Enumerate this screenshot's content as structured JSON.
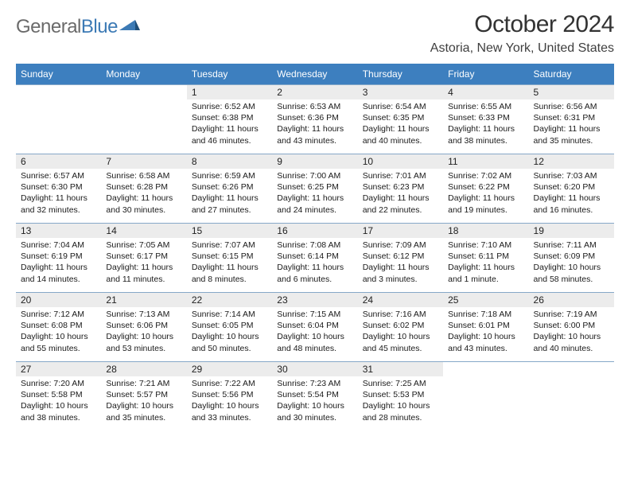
{
  "logo": {
    "word1": "General",
    "word2": "Blue"
  },
  "title": "October 2024",
  "location": "Astoria, New York, United States",
  "colors": {
    "headerBar": "#3d7fbf",
    "weekDivider": "#86a8c8",
    "dayNumBg": "#ececec",
    "logoGray": "#6a6a6a",
    "logoBlue": "#3c7ab5"
  },
  "typography": {
    "titleSize": 30,
    "locationSize": 16,
    "dowSize": 12,
    "bodySize": 10.5
  },
  "daysOfWeek": [
    "Sunday",
    "Monday",
    "Tuesday",
    "Wednesday",
    "Thursday",
    "Friday",
    "Saturday"
  ],
  "weeks": [
    [
      {
        "n": "",
        "lines": []
      },
      {
        "n": "",
        "lines": []
      },
      {
        "n": "1",
        "lines": [
          "Sunrise: 6:52 AM",
          "Sunset: 6:38 PM",
          "Daylight: 11 hours and 46 minutes."
        ]
      },
      {
        "n": "2",
        "lines": [
          "Sunrise: 6:53 AM",
          "Sunset: 6:36 PM",
          "Daylight: 11 hours and 43 minutes."
        ]
      },
      {
        "n": "3",
        "lines": [
          "Sunrise: 6:54 AM",
          "Sunset: 6:35 PM",
          "Daylight: 11 hours and 40 minutes."
        ]
      },
      {
        "n": "4",
        "lines": [
          "Sunrise: 6:55 AM",
          "Sunset: 6:33 PM",
          "Daylight: 11 hours and 38 minutes."
        ]
      },
      {
        "n": "5",
        "lines": [
          "Sunrise: 6:56 AM",
          "Sunset: 6:31 PM",
          "Daylight: 11 hours and 35 minutes."
        ]
      }
    ],
    [
      {
        "n": "6",
        "lines": [
          "Sunrise: 6:57 AM",
          "Sunset: 6:30 PM",
          "Daylight: 11 hours and 32 minutes."
        ]
      },
      {
        "n": "7",
        "lines": [
          "Sunrise: 6:58 AM",
          "Sunset: 6:28 PM",
          "Daylight: 11 hours and 30 minutes."
        ]
      },
      {
        "n": "8",
        "lines": [
          "Sunrise: 6:59 AM",
          "Sunset: 6:26 PM",
          "Daylight: 11 hours and 27 minutes."
        ]
      },
      {
        "n": "9",
        "lines": [
          "Sunrise: 7:00 AM",
          "Sunset: 6:25 PM",
          "Daylight: 11 hours and 24 minutes."
        ]
      },
      {
        "n": "10",
        "lines": [
          "Sunrise: 7:01 AM",
          "Sunset: 6:23 PM",
          "Daylight: 11 hours and 22 minutes."
        ]
      },
      {
        "n": "11",
        "lines": [
          "Sunrise: 7:02 AM",
          "Sunset: 6:22 PM",
          "Daylight: 11 hours and 19 minutes."
        ]
      },
      {
        "n": "12",
        "lines": [
          "Sunrise: 7:03 AM",
          "Sunset: 6:20 PM",
          "Daylight: 11 hours and 16 minutes."
        ]
      }
    ],
    [
      {
        "n": "13",
        "lines": [
          "Sunrise: 7:04 AM",
          "Sunset: 6:19 PM",
          "Daylight: 11 hours and 14 minutes."
        ]
      },
      {
        "n": "14",
        "lines": [
          "Sunrise: 7:05 AM",
          "Sunset: 6:17 PM",
          "Daylight: 11 hours and 11 minutes."
        ]
      },
      {
        "n": "15",
        "lines": [
          "Sunrise: 7:07 AM",
          "Sunset: 6:15 PM",
          "Daylight: 11 hours and 8 minutes."
        ]
      },
      {
        "n": "16",
        "lines": [
          "Sunrise: 7:08 AM",
          "Sunset: 6:14 PM",
          "Daylight: 11 hours and 6 minutes."
        ]
      },
      {
        "n": "17",
        "lines": [
          "Sunrise: 7:09 AM",
          "Sunset: 6:12 PM",
          "Daylight: 11 hours and 3 minutes."
        ]
      },
      {
        "n": "18",
        "lines": [
          "Sunrise: 7:10 AM",
          "Sunset: 6:11 PM",
          "Daylight: 11 hours and 1 minute."
        ]
      },
      {
        "n": "19",
        "lines": [
          "Sunrise: 7:11 AM",
          "Sunset: 6:09 PM",
          "Daylight: 10 hours and 58 minutes."
        ]
      }
    ],
    [
      {
        "n": "20",
        "lines": [
          "Sunrise: 7:12 AM",
          "Sunset: 6:08 PM",
          "Daylight: 10 hours and 55 minutes."
        ]
      },
      {
        "n": "21",
        "lines": [
          "Sunrise: 7:13 AM",
          "Sunset: 6:06 PM",
          "Daylight: 10 hours and 53 minutes."
        ]
      },
      {
        "n": "22",
        "lines": [
          "Sunrise: 7:14 AM",
          "Sunset: 6:05 PM",
          "Daylight: 10 hours and 50 minutes."
        ]
      },
      {
        "n": "23",
        "lines": [
          "Sunrise: 7:15 AM",
          "Sunset: 6:04 PM",
          "Daylight: 10 hours and 48 minutes."
        ]
      },
      {
        "n": "24",
        "lines": [
          "Sunrise: 7:16 AM",
          "Sunset: 6:02 PM",
          "Daylight: 10 hours and 45 minutes."
        ]
      },
      {
        "n": "25",
        "lines": [
          "Sunrise: 7:18 AM",
          "Sunset: 6:01 PM",
          "Daylight: 10 hours and 43 minutes."
        ]
      },
      {
        "n": "26",
        "lines": [
          "Sunrise: 7:19 AM",
          "Sunset: 6:00 PM",
          "Daylight: 10 hours and 40 minutes."
        ]
      }
    ],
    [
      {
        "n": "27",
        "lines": [
          "Sunrise: 7:20 AM",
          "Sunset: 5:58 PM",
          "Daylight: 10 hours and 38 minutes."
        ]
      },
      {
        "n": "28",
        "lines": [
          "Sunrise: 7:21 AM",
          "Sunset: 5:57 PM",
          "Daylight: 10 hours and 35 minutes."
        ]
      },
      {
        "n": "29",
        "lines": [
          "Sunrise: 7:22 AM",
          "Sunset: 5:56 PM",
          "Daylight: 10 hours and 33 minutes."
        ]
      },
      {
        "n": "30",
        "lines": [
          "Sunrise: 7:23 AM",
          "Sunset: 5:54 PM",
          "Daylight: 10 hours and 30 minutes."
        ]
      },
      {
        "n": "31",
        "lines": [
          "Sunrise: 7:25 AM",
          "Sunset: 5:53 PM",
          "Daylight: 10 hours and 28 minutes."
        ]
      },
      {
        "n": "",
        "lines": []
      },
      {
        "n": "",
        "lines": []
      }
    ]
  ]
}
